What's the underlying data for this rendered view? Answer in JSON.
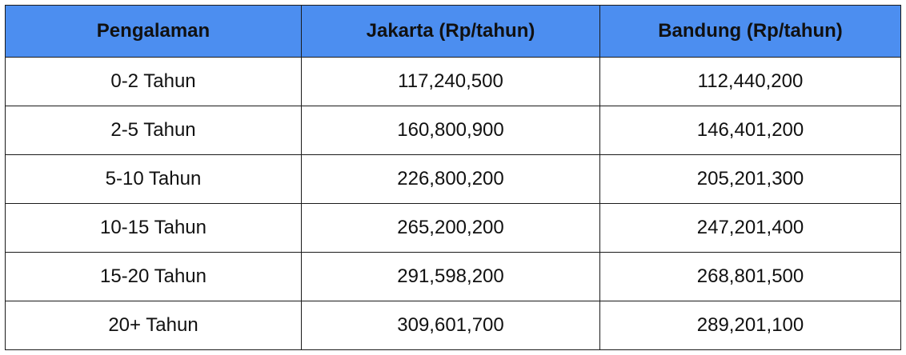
{
  "chart_data": {
    "type": "table",
    "columns": [
      "Pengalaman",
      "Jakarta (Rp/tahun)",
      "Bandung (Rp/tahun)"
    ],
    "rows": [
      [
        "0-2 Tahun",
        "117,240,500",
        "112,440,200"
      ],
      [
        "2-5 Tahun",
        "160,800,900",
        "146,401,200"
      ],
      [
        "5-10 Tahun",
        "226,800,200",
        "205,201,300"
      ],
      [
        "10-15 Tahun",
        "265,200,200",
        "247,201,400"
      ],
      [
        "15-20 Tahun",
        "291,598,200",
        "268,801,500"
      ],
      [
        "20+ Tahun",
        "309,601,700",
        "289,201,100"
      ]
    ],
    "header_color": "#4c8ef0",
    "border_color": "#1a1a1a"
  }
}
